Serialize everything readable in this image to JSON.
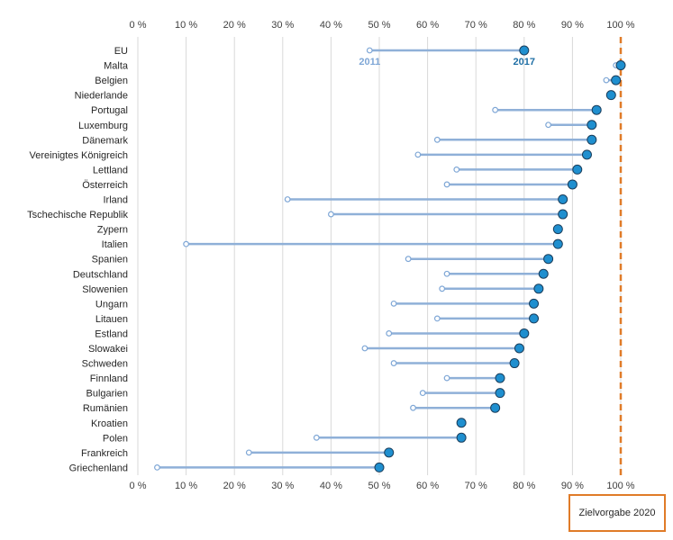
{
  "target_label": "Zielvorgabe 2020",
  "chart_data": {
    "type": "dot-plot",
    "orientation": "horizontal",
    "x_ticks": [
      "0 %",
      "10 %",
      "20 %",
      "30 %",
      "40 %",
      "50 %",
      "60 %",
      "70 %",
      "80 %",
      "90 %",
      "100 %"
    ],
    "xlim": [
      0,
      100
    ],
    "target_value": 100,
    "grid": true,
    "series": [
      {
        "name": "2011",
        "color": "#7fa7d6",
        "marker": "open-circle"
      },
      {
        "name": "2017",
        "color": "#1f8fcf",
        "marker": "filled-circle"
      }
    ],
    "categories": [
      "EU",
      "Malta",
      "Belgien",
      "Niederlande",
      "Portugal",
      "Luxemburg",
      "Dänemark",
      "Vereinigtes Königreich",
      "Lettland",
      "Österreich",
      "Irland",
      "Tschechische Republik",
      "Zypern",
      "Italien",
      "Spanien",
      "Deutschland",
      "Slowenien",
      "Ungarn",
      "Litauen",
      "Estland",
      "Slowakei",
      "Schweden",
      "Finnland",
      "Bulgarien",
      "Rumänien",
      "Kroatien",
      "Polen",
      "Frankreich",
      "Griechenland"
    ],
    "values_2011": [
      48,
      99,
      97,
      98,
      74,
      85,
      62,
      58,
      66,
      64,
      31,
      40,
      null,
      10,
      56,
      64,
      63,
      53,
      62,
      52,
      47,
      53,
      64,
      59,
      57,
      null,
      37,
      23,
      4
    ],
    "values_2017": [
      80,
      100,
      99,
      98,
      95,
      94,
      94,
      93,
      91,
      90,
      88,
      88,
      87,
      87,
      85,
      84,
      83,
      82,
      82,
      80,
      79,
      78,
      75,
      75,
      74,
      67,
      67,
      52,
      50
    ]
  }
}
